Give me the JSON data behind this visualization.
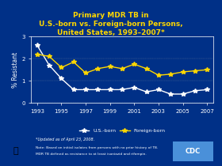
{
  "title_lines": [
    "Primary MDR TB in",
    "U.S.-born vs. Foreign-born Persons,",
    "United States, 1993–2007*"
  ],
  "background_color": "#003087",
  "plot_bg_color": "#003087",
  "title_color": "#FFD700",
  "years": [
    1993,
    1994,
    1995,
    1996,
    1997,
    1998,
    1999,
    2000,
    2001,
    2002,
    2003,
    2004,
    2005,
    2006,
    2007
  ],
  "us_born": [
    2.6,
    1.7,
    1.1,
    0.6,
    0.6,
    0.6,
    0.6,
    0.6,
    0.7,
    0.5,
    0.6,
    0.4,
    0.4,
    0.55,
    0.6
  ],
  "foreign_born": [
    2.2,
    2.1,
    1.6,
    1.85,
    1.35,
    1.55,
    1.65,
    1.55,
    1.75,
    1.55,
    1.25,
    1.3,
    1.4,
    1.45,
    1.5
  ],
  "us_born_color": "#FFFFFF",
  "foreign_born_color": "#FFD700",
  "ylabel": "% Resistant",
  "ylim": [
    0,
    3
  ],
  "yticks": [
    0,
    1,
    2,
    3
  ],
  "xlim": [
    1992.5,
    2007.5
  ],
  "xticks": [
    1993,
    1995,
    1997,
    1999,
    2001,
    2003,
    2005,
    2007
  ],
  "tick_color": "#FFFFFF",
  "axis_color": "#FFFFFF",
  "footnote1": "*Updated as of April 23, 2008.",
  "footnote2": "Note: Based on initial isolates from persons with no prior history of TB.",
  "footnote3": "MDR TB defined as resistance to at least isoniazid and rifampin.",
  "footnote_color": "#FFFFFF",
  "legend_us": "U.S.-born",
  "legend_foreign": "Foreign-born"
}
